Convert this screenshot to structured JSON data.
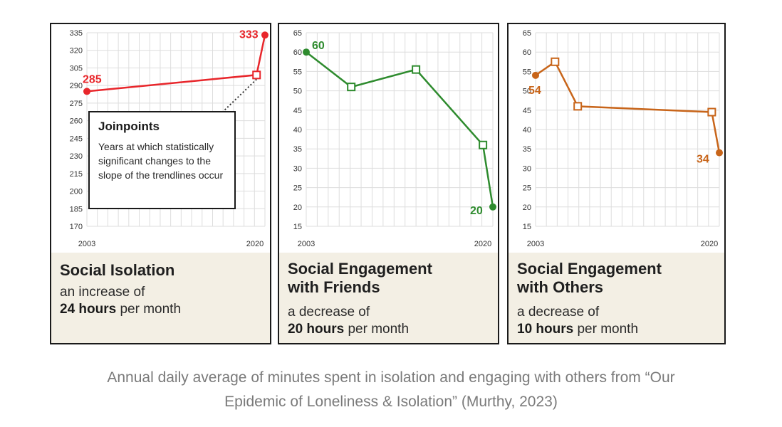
{
  "colors": {
    "isolation": "#e8262b",
    "friends": "#2e8b2e",
    "others": "#c8651a",
    "caption_bg": "#f3efe4",
    "grid": "#dddddd"
  },
  "chart_data": [
    {
      "type": "line",
      "title": "Social Isolation",
      "desc_prefix": "an increase of",
      "desc_bold": "24 hours",
      "desc_suffix": " per month",
      "x_labels": [
        "2003",
        "2020"
      ],
      "xlim": [
        2003,
        2020
      ],
      "ylim": [
        170,
        335
      ],
      "yticks": [
        170,
        185,
        200,
        215,
        230,
        245,
        260,
        275,
        290,
        305,
        320,
        335
      ],
      "points": [
        {
          "x": 2003,
          "y": 285,
          "kind": "end",
          "label": "285"
        },
        {
          "x": 2019.2,
          "y": 299,
          "kind": "joinpoint"
        },
        {
          "x": 2020,
          "y": 333,
          "kind": "end",
          "label": "333"
        }
      ],
      "color_key": "isolation",
      "callout": {
        "title": "Joinpoints",
        "text": "Years at which statistically significant changes to the slope of the trendlines occur"
      }
    },
    {
      "type": "line",
      "title": "Social Engagement with Friends",
      "desc_prefix": "a decrease of",
      "desc_bold": "20 hours",
      "desc_suffix": " per month",
      "x_labels": [
        "2003",
        "2020"
      ],
      "xlim": [
        2003,
        2020
      ],
      "ylim": [
        15,
        65
      ],
      "yticks": [
        15,
        20,
        25,
        30,
        35,
        40,
        45,
        50,
        55,
        60,
        65
      ],
      "points": [
        {
          "x": 2003,
          "y": 60,
          "kind": "end",
          "label": "60"
        },
        {
          "x": 2007.1,
          "y": 51,
          "kind": "joinpoint"
        },
        {
          "x": 2013,
          "y": 55.5,
          "kind": "joinpoint"
        },
        {
          "x": 2019.1,
          "y": 36,
          "kind": "joinpoint"
        },
        {
          "x": 2020,
          "y": 20,
          "kind": "end",
          "label": "20"
        }
      ],
      "color_key": "friends"
    },
    {
      "type": "line",
      "title": "Social Engagement with Others",
      "desc_prefix": "a decrease of",
      "desc_bold": "10 hours",
      "desc_suffix": " per month",
      "x_labels": [
        "2003",
        "2020"
      ],
      "xlim": [
        2003,
        2020
      ],
      "ylim": [
        15,
        65
      ],
      "yticks": [
        15,
        20,
        25,
        30,
        35,
        40,
        45,
        50,
        55,
        60,
        65
      ],
      "points": [
        {
          "x": 2003,
          "y": 54,
          "kind": "end",
          "label": "54"
        },
        {
          "x": 2004.8,
          "y": 57.5,
          "kind": "joinpoint"
        },
        {
          "x": 2006.9,
          "y": 46,
          "kind": "joinpoint"
        },
        {
          "x": 2019.3,
          "y": 44.5,
          "kind": "joinpoint"
        },
        {
          "x": 2020,
          "y": 34,
          "kind": "end",
          "label": "34"
        }
      ],
      "color_key": "others"
    }
  ],
  "footer": {
    "line1": "Annual daily average of minutes spent in isolation and engaging with others from “Our",
    "line2": "Epidemic of Loneliness & Isolation” (Murthy, 2023)"
  }
}
